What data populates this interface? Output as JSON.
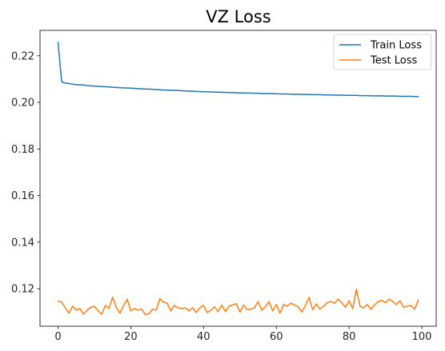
{
  "chart_data": {
    "type": "line",
    "title": "VZ Loss",
    "xlabel": "",
    "ylabel": "",
    "xlim": [
      -4.95,
      103.95
    ],
    "ylim": [
      0.1039,
      0.2309
    ],
    "xticks": [
      0,
      20,
      40,
      60,
      80,
      100
    ],
    "yticks": [
      0.12,
      0.14,
      0.16,
      0.18,
      0.2,
      0.22
    ],
    "ytick_labels": [
      "0.12",
      "0.14",
      "0.16",
      "0.18",
      "0.20",
      "0.22"
    ],
    "xtick_labels": [
      "0",
      "20",
      "40",
      "60",
      "80",
      "100"
    ],
    "grid": false,
    "legend_position": "top-right",
    "x": [
      0,
      1,
      2,
      3,
      4,
      5,
      6,
      7,
      8,
      9,
      10,
      11,
      12,
      13,
      14,
      15,
      16,
      17,
      18,
      19,
      20,
      21,
      22,
      23,
      24,
      25,
      26,
      27,
      28,
      29,
      30,
      31,
      32,
      33,
      34,
      35,
      36,
      37,
      38,
      39,
      40,
      41,
      42,
      43,
      44,
      45,
      46,
      47,
      48,
      49,
      50,
      51,
      52,
      53,
      54,
      55,
      56,
      57,
      58,
      59,
      60,
      61,
      62,
      63,
      64,
      65,
      66,
      67,
      68,
      69,
      70,
      71,
      72,
      73,
      74,
      75,
      76,
      77,
      78,
      79,
      80,
      81,
      82,
      83,
      84,
      85,
      86,
      87,
      88,
      89,
      90,
      91,
      92,
      93,
      94,
      95,
      96,
      97,
      98,
      99
    ],
    "series": [
      {
        "name": "Train Loss",
        "color": "#1f77b4",
        "values": [
          0.2257,
          0.2088,
          0.2083,
          0.2081,
          0.2078,
          0.2076,
          0.2075,
          0.2075,
          0.2072,
          0.2071,
          0.207,
          0.2069,
          0.2068,
          0.2067,
          0.2066,
          0.2065,
          0.2064,
          0.2063,
          0.2062,
          0.2062,
          0.2061,
          0.206,
          0.2059,
          0.2058,
          0.2057,
          0.2057,
          0.2056,
          0.2055,
          0.2054,
          0.2053,
          0.2053,
          0.2052,
          0.2051,
          0.2051,
          0.205,
          0.2049,
          0.2048,
          0.2048,
          0.2047,
          0.2046,
          0.2046,
          0.2045,
          0.2045,
          0.2044,
          0.2044,
          0.2043,
          0.2043,
          0.2042,
          0.2042,
          0.2041,
          0.2041,
          0.204,
          0.204,
          0.204,
          0.2039,
          0.2039,
          0.2038,
          0.2038,
          0.2038,
          0.2037,
          0.2037,
          0.2036,
          0.2036,
          0.2036,
          0.2035,
          0.2035,
          0.2035,
          0.2034,
          0.2034,
          0.2034,
          0.2033,
          0.2033,
          0.2033,
          0.2032,
          0.2032,
          0.2032,
          0.2031,
          0.2031,
          0.2031,
          0.203,
          0.203,
          0.203,
          0.203,
          0.2029,
          0.2029,
          0.2029,
          0.2028,
          0.2028,
          0.2028,
          0.2028,
          0.2027,
          0.2027,
          0.2027,
          0.2027,
          0.2026,
          0.2026,
          0.2026,
          0.2026,
          0.2025,
          0.2025
        ]
      },
      {
        "name": "Test Loss",
        "color": "#ff7f0e",
        "values": [
          0.1146,
          0.1143,
          0.1118,
          0.1095,
          0.1125,
          0.1108,
          0.1115,
          0.109,
          0.1108,
          0.112,
          0.1125,
          0.1105,
          0.109,
          0.1128,
          0.1115,
          0.1163,
          0.112,
          0.1095,
          0.1128,
          0.1155,
          0.1105,
          0.1115,
          0.1108,
          0.1112,
          0.1088,
          0.1093,
          0.1112,
          0.1108,
          0.1158,
          0.1142,
          0.1138,
          0.1105,
          0.1128,
          0.1118,
          0.1115,
          0.1118,
          0.1105,
          0.1118,
          0.1098,
          0.1118,
          0.1128,
          0.1098,
          0.1108,
          0.1122,
          0.1102,
          0.113,
          0.1102,
          0.1125,
          0.113,
          0.1136,
          0.11,
          0.113,
          0.111,
          0.1112,
          0.1118,
          0.1145,
          0.1108,
          0.1122,
          0.1145,
          0.1105,
          0.1132,
          0.1095,
          0.1132,
          0.1125,
          0.1138,
          0.113,
          0.1122,
          0.11,
          0.1128,
          0.1163,
          0.111,
          0.1135,
          0.1112,
          0.1125,
          0.114,
          0.1145,
          0.1138,
          0.1155,
          0.114,
          0.112,
          0.1148,
          0.1115,
          0.1198,
          0.1125,
          0.1118,
          0.1132,
          0.1112,
          0.113,
          0.1145,
          0.115,
          0.114,
          0.1155,
          0.1145,
          0.1132,
          0.1148,
          0.112,
          0.1125,
          0.1128,
          0.1112,
          0.115
        ]
      }
    ]
  }
}
